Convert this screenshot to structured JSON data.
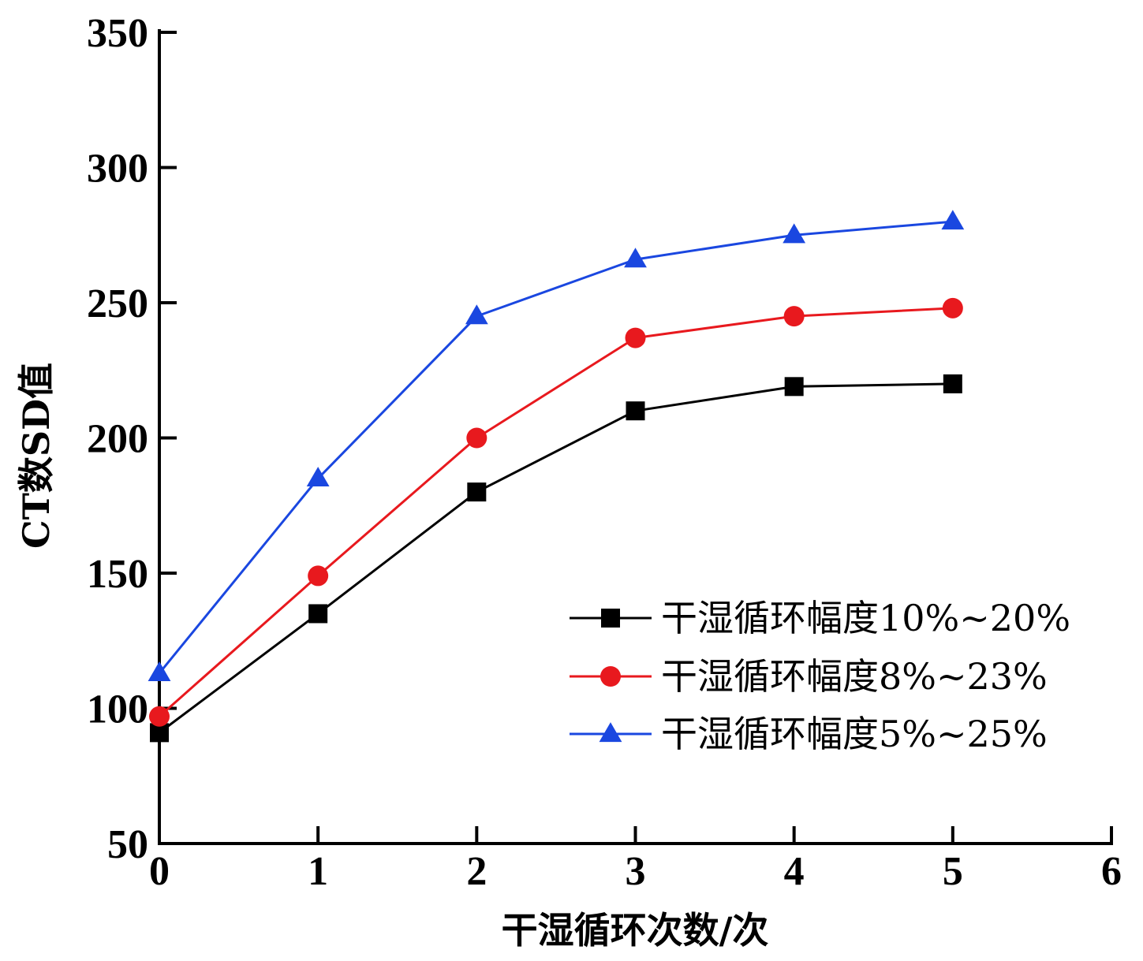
{
  "chart_data": {
    "type": "line",
    "title": "",
    "xlabel": "干湿循环次数/次",
    "ylabel": "CT数SD值",
    "xlim": [
      0,
      6
    ],
    "ylim": [
      50,
      350
    ],
    "x_ticks": [
      "0",
      "1",
      "2",
      "3",
      "4",
      "5",
      "6"
    ],
    "y_ticks": [
      "50",
      "100",
      "150",
      "200",
      "250",
      "300",
      "350"
    ],
    "grid": false,
    "legend_position": "lower-right",
    "x": [
      0,
      1,
      2,
      3,
      4,
      5
    ],
    "series": [
      {
        "name": "干湿循环幅度10%~20%",
        "color": "#000000",
        "marker": "square",
        "values": [
          91,
          135,
          180,
          210,
          219,
          220
        ]
      },
      {
        "name": "干湿循环幅度8%~23%",
        "color": "#e8191e",
        "marker": "circle",
        "values": [
          97,
          149,
          200,
          237,
          245,
          248
        ]
      },
      {
        "name": "干湿循环幅度5%~25%",
        "color": "#1a47e0",
        "marker": "triangle",
        "values": [
          113,
          185,
          245,
          266,
          275,
          280
        ]
      }
    ]
  }
}
